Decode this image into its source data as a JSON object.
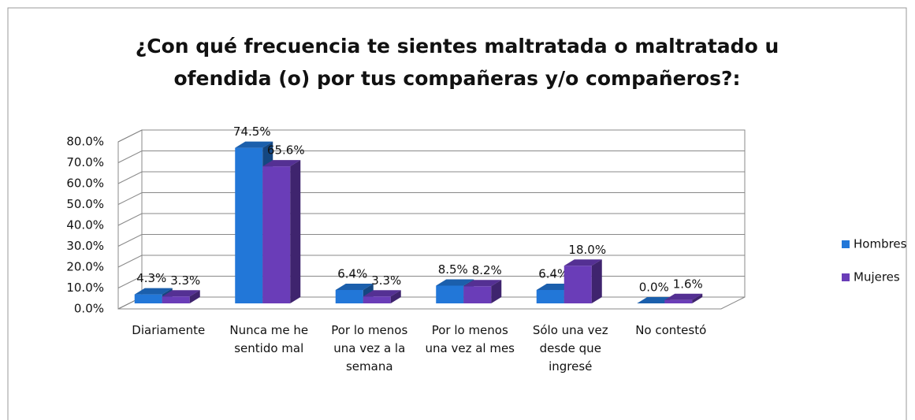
{
  "chart_data": {
    "type": "bar3d",
    "title": "¿Con qué frecuencia te sientes maltratada o maltratado u ofendida (o) por tus compañeras y/o compañeros?:",
    "categories": [
      "Diariamente",
      "Nunca me he sentido mal",
      "Por lo menos una vez a la semana",
      "Por lo menos una vez al mes",
      "Sólo una vez desde que ingresé",
      "No contestó"
    ],
    "series": [
      {
        "name": "Hombres",
        "color": "#2277d8",
        "values": [
          4.3,
          74.5,
          6.4,
          8.5,
          6.4,
          0.0
        ],
        "value_labels": [
          "4.3%",
          "74.5%",
          "6.4%",
          "8.5%",
          "6.4%",
          "0.0%"
        ]
      },
      {
        "name": "Mujeres",
        "color": "#6a3db8",
        "values": [
          3.3,
          65.6,
          3.3,
          8.2,
          18.0,
          1.6
        ],
        "value_labels": [
          "3.3%",
          "65.6%",
          "3.3%",
          "8.2%",
          "18.0%",
          "1.6%"
        ]
      }
    ],
    "ylim": [
      0,
      80
    ],
    "yticks": [
      {
        "value": 0,
        "label": "0.0%"
      },
      {
        "value": 10,
        "label": "10.0%"
      },
      {
        "value": 20,
        "label": "20.0%"
      },
      {
        "value": 30,
        "label": "30.0%"
      },
      {
        "value": 40,
        "label": "40.0%"
      },
      {
        "value": 50,
        "label": "50.0%"
      },
      {
        "value": 60,
        "label": "60.0%"
      },
      {
        "value": 70,
        "label": "70.0%"
      },
      {
        "value": 80,
        "label": "80.0%"
      }
    ],
    "grid": true,
    "legend": "right"
  }
}
